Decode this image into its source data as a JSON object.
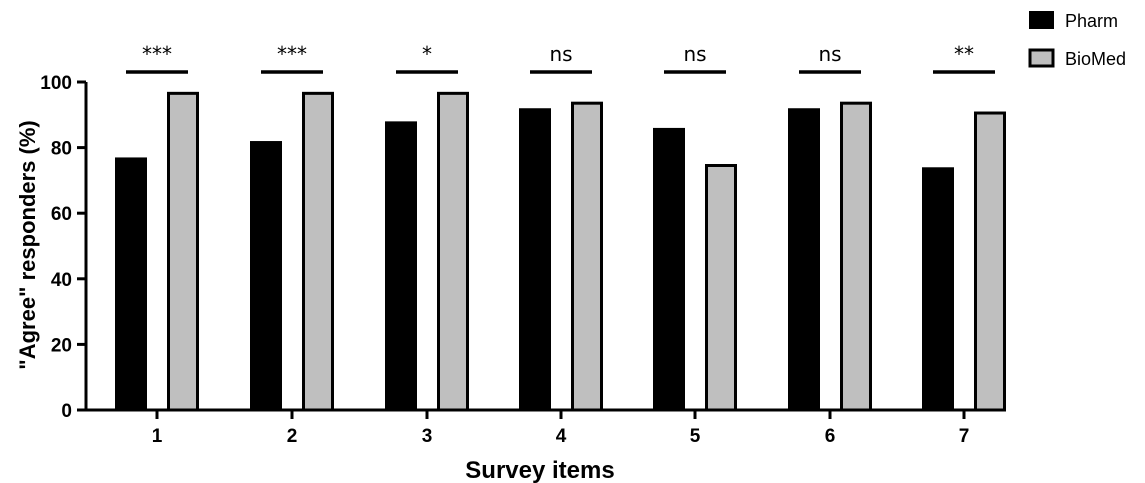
{
  "chart_data": {
    "type": "bar",
    "title": "",
    "xlabel": "Survey items",
    "ylabel": "\"Agree\" responders (%)",
    "ylim": [
      0,
      100
    ],
    "yticks": [
      "0",
      "20",
      "40",
      "60",
      "80",
      "100"
    ],
    "categories": [
      "1",
      "2",
      "3",
      "4",
      "5",
      "6",
      "7"
    ],
    "series": [
      {
        "name": "Pharm",
        "color": "#000000",
        "values": [
          77,
          82,
          88,
          92,
          86,
          92,
          74
        ]
      },
      {
        "name": "BioMed",
        "color": "#bfbfbf",
        "values": [
          97,
          97,
          97,
          94,
          75,
          94,
          91
        ]
      }
    ],
    "significance": [
      "***",
      "***",
      "*",
      "ns",
      "ns",
      "ns",
      "**"
    ],
    "legend_position": "top-right",
    "grid": false
  }
}
